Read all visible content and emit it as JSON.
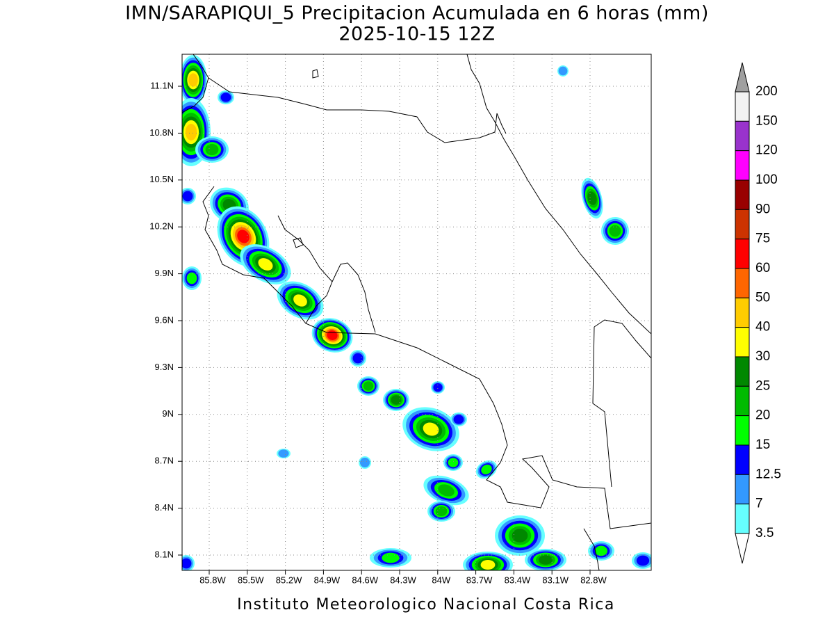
{
  "header": {
    "title": "IMN/SARAPIQUI_5 Precipitacion Acumulada en 6 horas (mm)",
    "subtitle": "2025-10-15 12Z"
  },
  "map": {
    "lat_labels": [
      "11.1N",
      "10.8N",
      "10.5N",
      "10.2N",
      "9.9N",
      "9.6N",
      "9.3N",
      "9N",
      "8.7N",
      "8.4N",
      "8.1N"
    ],
    "lon_labels": [
      "85.8W",
      "85.5W",
      "85.2W",
      "84.9W",
      "84.6W",
      "84.3W",
      "84W",
      "83.7W",
      "83.4W",
      "83.1W",
      "82.8W"
    ]
  },
  "colorbar": {
    "labels": [
      "200",
      "150",
      "120",
      "100",
      "90",
      "75",
      "60",
      "50",
      "40",
      "30",
      "25",
      "20",
      "15",
      "12.5",
      "7",
      "3.5"
    ],
    "colors": [
      "#a0a0a0",
      "#f2f2f2",
      "#9933cc",
      "#ff00ff",
      "#990000",
      "#cc3300",
      "#ff0000",
      "#ff6600",
      "#ffcc00",
      "#ffff00",
      "#008800",
      "#00bb00",
      "#00ff00",
      "#0000ff",
      "#3399ff",
      "#66ffff",
      "#ffffff"
    ]
  },
  "footer": "Instituto Meteorologico Nacional Costa Rica"
}
